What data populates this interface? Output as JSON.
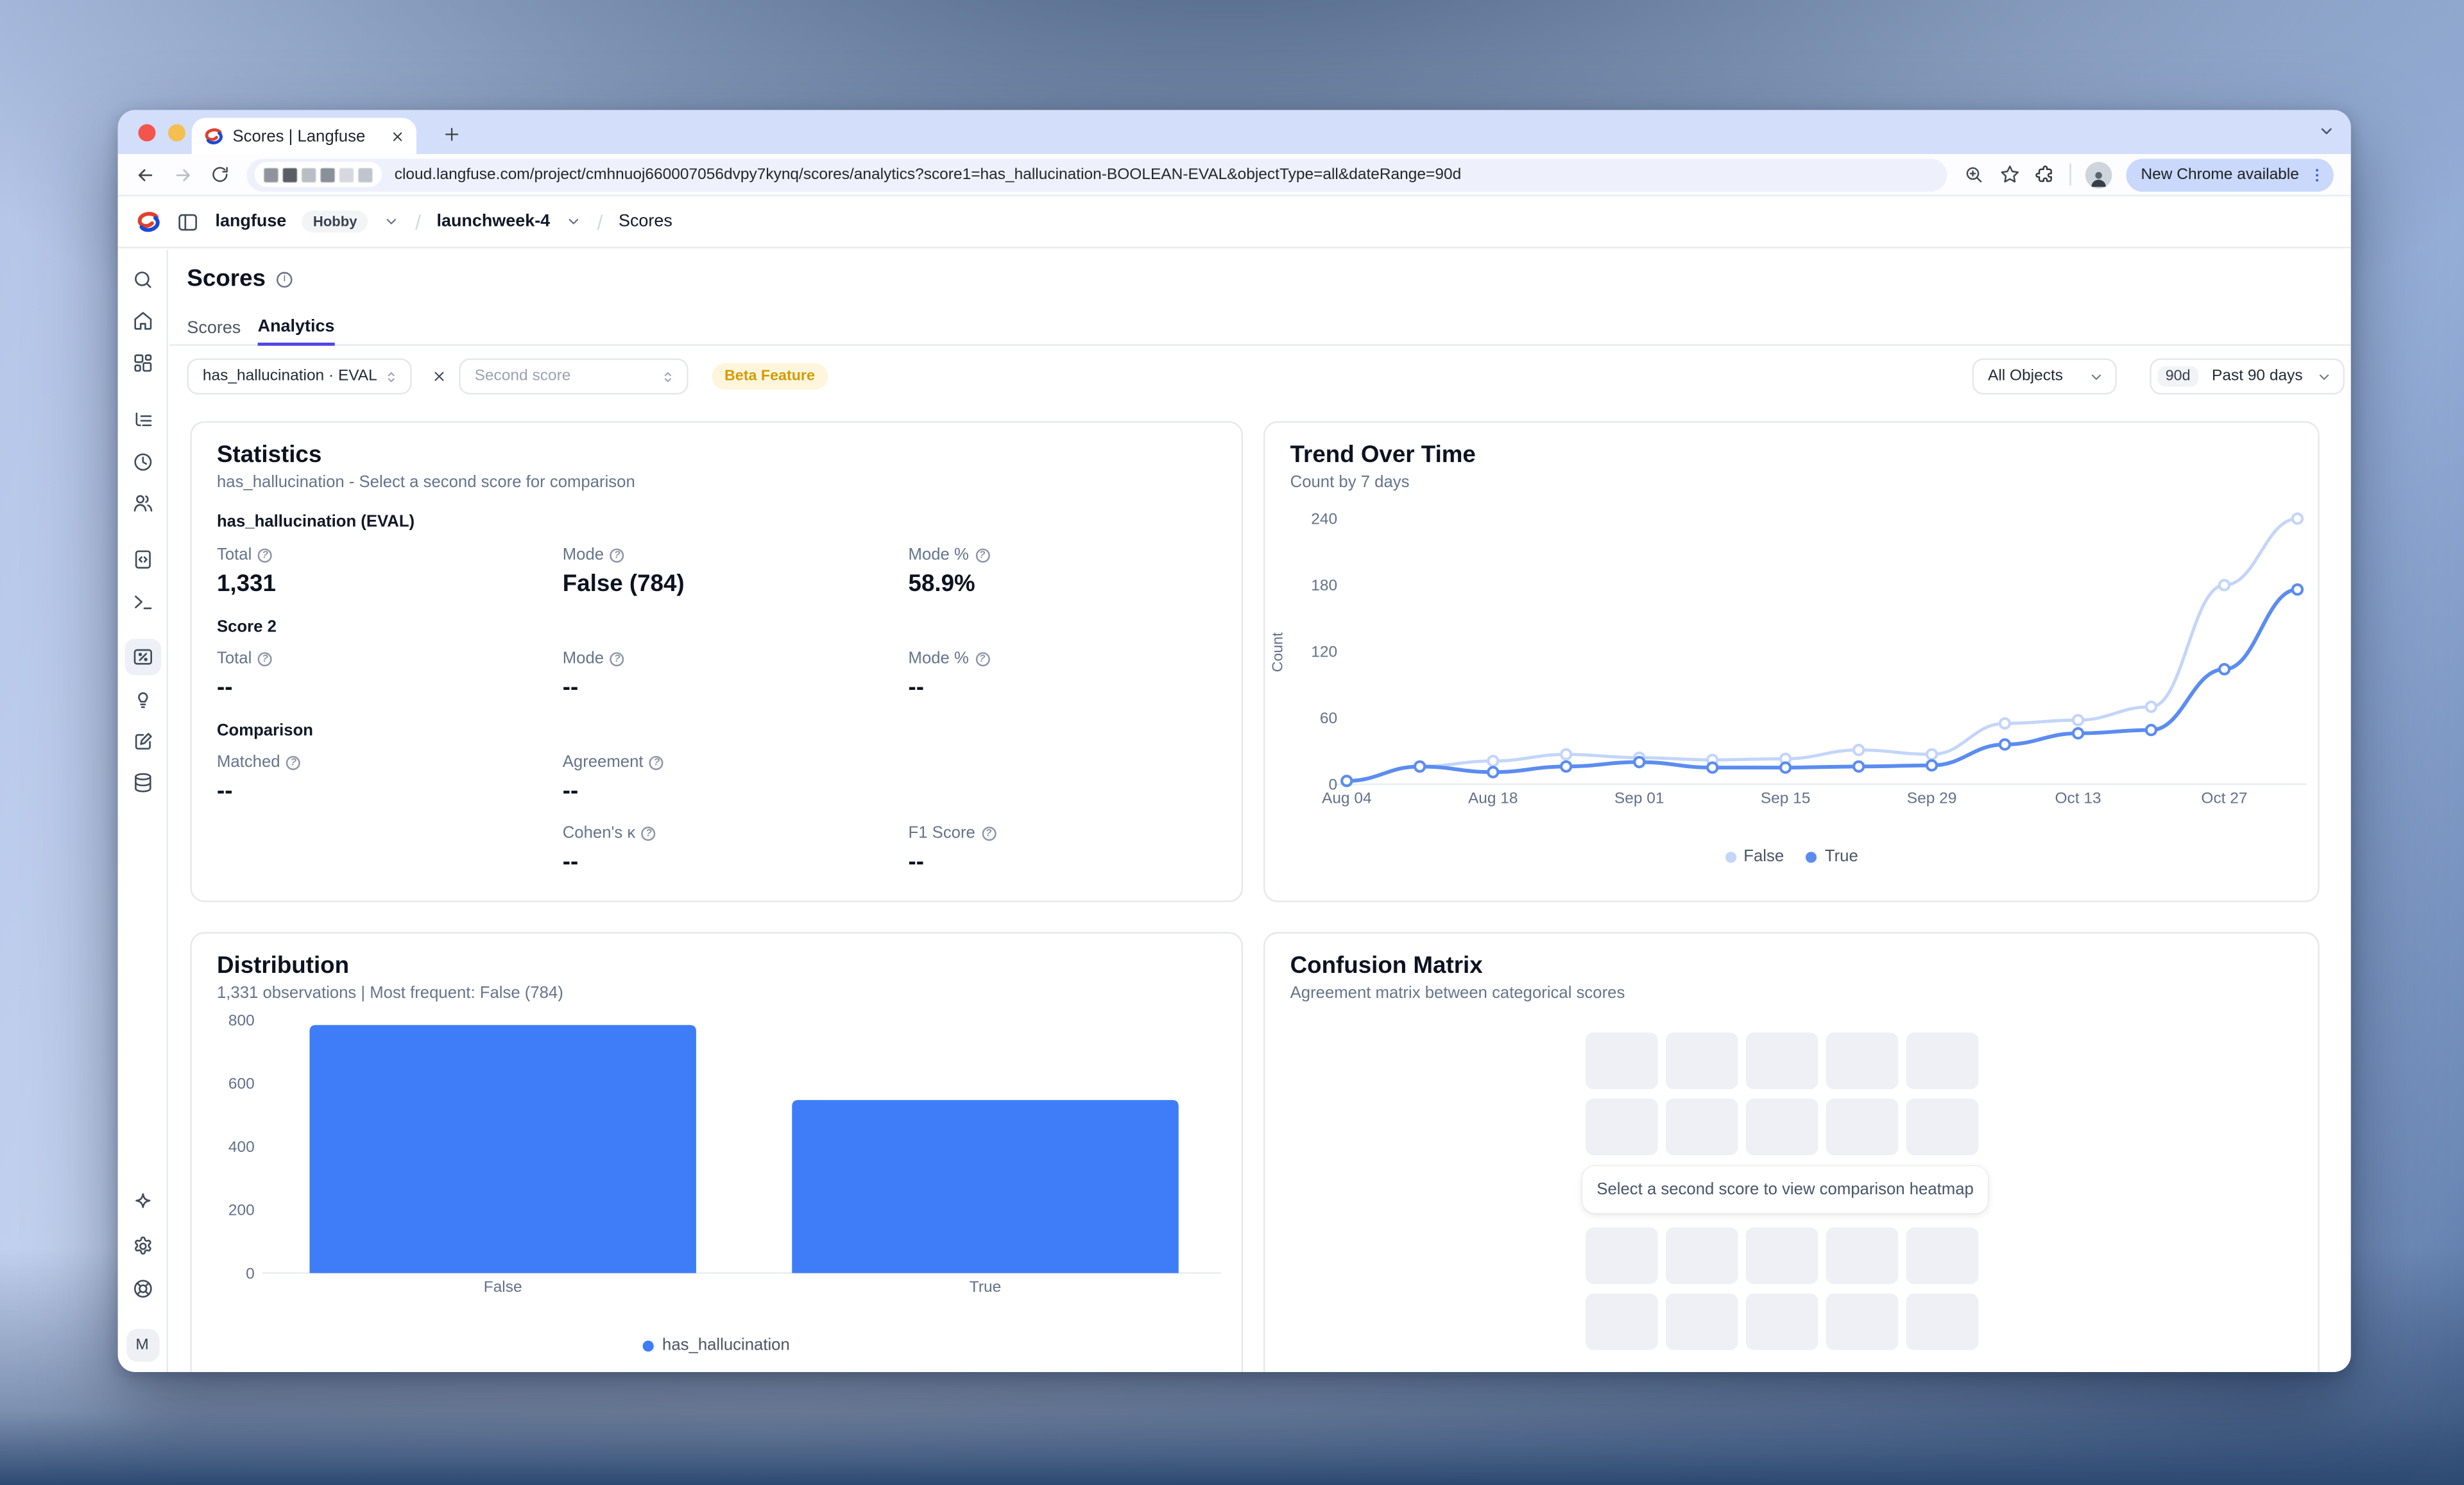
{
  "accent": "#4f46e5",
  "browser": {
    "tab_title": "Scores | Langfuse",
    "url": "cloud.langfuse.com/project/cmhnuoj660007056dvpy7kynq/scores/analytics?score1=has_hallucination-BOOLEAN-EVAL&objectType=all&dateRange=90d",
    "update_pill": "New Chrome available"
  },
  "app_header": {
    "org": "langfuse",
    "org_badge": "Hobby",
    "project": "launchweek-4",
    "page": "Scores"
  },
  "page": {
    "title": "Scores",
    "tab_scores": "Scores",
    "tab_analytics": "Analytics"
  },
  "filters": {
    "score1": "has_hallucination · EVAL",
    "score2_placeholder": "Second score",
    "beta_badge": "Beta Feature",
    "object_filter": "All Objects",
    "date_range_short": "90d",
    "date_range": "Past 90 days"
  },
  "statistics": {
    "title": "Statistics",
    "subtitle": "has_hallucination - Select a second score for comparison",
    "score1_section": "has_hallucination (EVAL)",
    "labels": {
      "total": "Total",
      "mode": "Mode",
      "mode_pct": "Mode %"
    },
    "score1_values": {
      "total": "1,331",
      "mode": "False (784)",
      "mode_pct": "58.9%"
    },
    "score2_section": "Score 2",
    "score2_values": {
      "total": "--",
      "mode": "--",
      "mode_pct": "--"
    },
    "comparison_section": "Comparison",
    "comparison_labels": {
      "matched": "Matched",
      "agreement": "Agreement",
      "cohens_k": "Cohen's κ",
      "f1": "F1 Score"
    },
    "comparison_values": {
      "matched": "--",
      "agreement": "--",
      "cohens_k": "--",
      "f1": "--"
    }
  },
  "trend_card": {
    "title": "Trend Over Time",
    "subtitle": "Count by 7 days"
  },
  "distribution_card": {
    "title": "Distribution",
    "subtitle": "1,331 observations | Most frequent: False (784)"
  },
  "confusion_card": {
    "title": "Confusion Matrix",
    "subtitle": "Agreement matrix between categorical scores",
    "empty_message": "Select a second score to view comparison heatmap"
  },
  "sidebar": {
    "avatar": "M"
  },
  "chart_data": [
    {
      "id": "trend",
      "type": "line",
      "title": "Trend Over Time",
      "subtitle": "Count by 7 days",
      "ylabel": "Count",
      "x": [
        "Aug 04",
        "Aug 11",
        "Aug 18",
        "Aug 25",
        "Sep 01",
        "Sep 08",
        "Sep 15",
        "Sep 22",
        "Sep 29",
        "Oct 06",
        "Oct 13",
        "Oct 20",
        "Oct 27",
        "Nov 03"
      ],
      "x_tick_labels": [
        "Aug 04",
        "Aug 18",
        "Sep 01",
        "Sep 15",
        "Sep 29",
        "Oct 13",
        "Oct 27"
      ],
      "series": [
        {
          "name": "False",
          "color": "#c3d5f9",
          "values": [
            3,
            16,
            21,
            27,
            24,
            22,
            23,
            31,
            27,
            55,
            58,
            70,
            180,
            240
          ]
        },
        {
          "name": "True",
          "color": "#5b8cf0",
          "values": [
            3,
            16,
            11,
            16,
            20,
            15,
            15,
            16,
            17,
            36,
            46,
            49,
            104,
            176
          ]
        }
      ],
      "ylim": [
        0,
        250
      ],
      "yticks": [
        0,
        60,
        120,
        180,
        240
      ],
      "grid": false,
      "legend_position": "bottom"
    },
    {
      "id": "distribution",
      "type": "bar",
      "title": "Distribution",
      "categories": [
        "False",
        "True"
      ],
      "values": [
        784,
        547
      ],
      "series_name": "has_hallucination",
      "color": "#3e7df7",
      "ylim": [
        0,
        820
      ],
      "yticks": [
        0,
        200,
        400,
        600,
        800
      ],
      "grid": false,
      "legend_position": "bottom"
    }
  ]
}
